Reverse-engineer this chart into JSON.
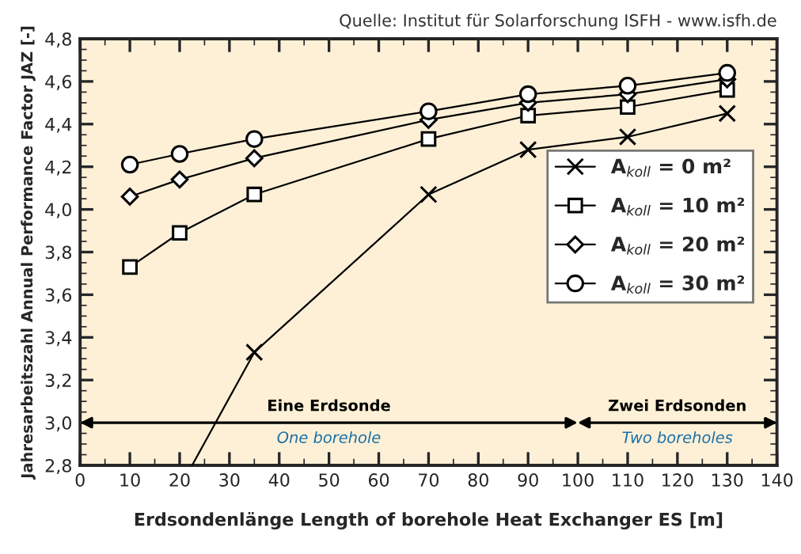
{
  "chart_data": {
    "type": "line",
    "subtitle": "Quelle: Institut für Solarforschung ISFH - www.isfh.de",
    "xlabel": "Erdsondenlänge Length of borehole Heat Exchanger ES [m]",
    "ylabel": "Jahresarbeitszahl Annual Performance Factor JAZ [-]",
    "xlim": [
      0,
      140
    ],
    "xticks": [
      0,
      10,
      20,
      30,
      40,
      50,
      60,
      70,
      80,
      90,
      100,
      110,
      120,
      130,
      140
    ],
    "ylim": [
      2.8,
      4.8
    ],
    "yticks": [
      {
        "value": 2.8,
        "label": "2,8"
      },
      {
        "value": 3.0,
        "label": "3,0"
      },
      {
        "value": 3.2,
        "label": "3,2"
      },
      {
        "value": 3.4,
        "label": "3,4"
      },
      {
        "value": 3.6,
        "label": "3,6"
      },
      {
        "value": 3.8,
        "label": "3,8"
      },
      {
        "value": 4.0,
        "label": "4,0"
      },
      {
        "value": 4.2,
        "label": "4,2"
      },
      {
        "value": 4.4,
        "label": "4,4"
      },
      {
        "value": 4.6,
        "label": "4,6"
      },
      {
        "value": 4.8,
        "label": "4,8"
      }
    ],
    "grid": false,
    "legend": "right",
    "series": [
      {
        "name": "A$_{koll}$ = 0 m²",
        "color": "#000000",
        "marker": "cross",
        "x": [
          22.5,
          35,
          70,
          90,
          110,
          130
        ],
        "values": [
          2.8,
          3.33,
          4.07,
          4.28,
          4.34,
          4.45
        ]
      },
      {
        "name": "A$_{koll}$ = 10 m²",
        "color": "#000000",
        "marker": "square",
        "x": [
          10,
          20,
          35,
          70,
          90,
          110,
          130
        ],
        "values": [
          3.73,
          3.89,
          4.07,
          4.33,
          4.44,
          4.48,
          4.56
        ]
      },
      {
        "name": "A$_{koll}$ = 20 m²",
        "color": "#000000",
        "marker": "diamond",
        "x": [
          10,
          20,
          35,
          70,
          90,
          110,
          130
        ],
        "values": [
          4.06,
          4.14,
          4.24,
          4.42,
          4.5,
          4.54,
          4.61
        ]
      },
      {
        "name": "A$_{koll}$ = 30 m²",
        "color": "#000000",
        "marker": "circle",
        "x": [
          10,
          20,
          35,
          70,
          90,
          110,
          130
        ],
        "values": [
          4.21,
          4.26,
          4.33,
          4.46,
          4.54,
          4.58,
          4.64
        ]
      }
    ],
    "annotations": [
      "Eine Erdsonde",
      "One borehole",
      "Zwei Erdsonden",
      "Two boreholes"
    ]
  }
}
